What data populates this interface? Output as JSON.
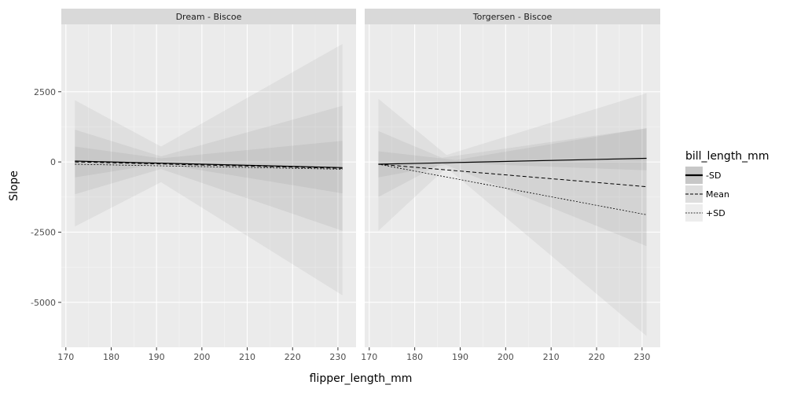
{
  "chart_data": {
    "type": "line",
    "xlabel": "flipper_length_mm",
    "ylabel": "Slope",
    "xlim": [
      169,
      234
    ],
    "ylim": [
      -6600,
      4900
    ],
    "x_ticks": [
      170,
      180,
      190,
      200,
      210,
      220,
      230
    ],
    "x_tick_labels": [
      "170",
      "180",
      "190",
      "200",
      "210",
      "220",
      "230"
    ],
    "y_ticks": [
      2500,
      0,
      -2500,
      -5000
    ],
    "y_tick_labels": [
      "2500",
      "0",
      "-2500",
      "-5000"
    ],
    "grid": true,
    "legend": {
      "title": "bill_length_mm",
      "placement": "right",
      "entries": [
        "-SD",
        "Mean",
        "+SD"
      ]
    },
    "colors": {
      "panel_bg": "#ebebeb",
      "strip_bg": "#d9d9d9",
      "grid_major": "#ffffff",
      "line": "#000000",
      "band_fill": "#000000"
    },
    "facets": [
      {
        "strip": "Dream - Biscoe",
        "x_range": [
          172,
          231
        ],
        "series": [
          {
            "name": "-SD",
            "line": [
              [
                172,
                30
              ],
              [
                231,
                -200
              ]
            ],
            "bands": [
              [
                [
                  172,
                  -550,
                  550
                ],
                [
                  191,
                  -60,
                  130
                ],
                [
                  231,
                  -1120,
                  750
                ]
              ]
            ]
          },
          {
            "name": "Mean",
            "line": [
              [
                172,
                0
              ],
              [
                231,
                -230
              ]
            ],
            "bands": [
              [
                [
                  172,
                  -1150,
                  1150
                ],
                [
                  191,
                  -250,
                  200
                ],
                [
                  231,
                  -2450,
                  2000
                ]
              ]
            ]
          },
          {
            "name": "+SD",
            "line": [
              [
                172,
                -80
              ],
              [
                231,
                -260
              ]
            ],
            "bands": [
              [
                [
                  172,
                  -2300,
                  2200
                ],
                [
                  191,
                  -720,
                  550
                ],
                [
                  231,
                  -4750,
                  4200
                ]
              ]
            ]
          }
        ]
      },
      {
        "strip": "Torgersen - Biscoe",
        "x_range": [
          172,
          231
        ],
        "series": [
          {
            "name": "-SD",
            "line": [
              [
                172,
                -80
              ],
              [
                231,
                130
              ]
            ],
            "bands": [
              [
                [
                  172,
                  -550,
                  380
                ],
                [
                  189,
                  -40,
                  70
                ],
                [
                  231,
                  -300,
                  1200
                ]
              ]
            ]
          },
          {
            "name": "Mean",
            "line": [
              [
                172,
                -80
              ],
              [
                231,
                -880
              ]
            ],
            "bands": [
              [
                [
                  172,
                  -1250,
                  1100
                ],
                [
                  186,
                  -50,
                  150
                ],
                [
                  231,
                  -3000,
                  1200
                ]
              ]
            ]
          },
          {
            "name": "+SD",
            "line": [
              [
                172,
                -80
              ],
              [
                231,
                -1880
              ]
            ],
            "bands": [
              [
                [
                  172,
                  -2450,
                  2250
                ],
                [
                  187,
                  -200,
                  250
                ],
                [
                  231,
                  -6200,
                  2450
                ]
              ]
            ]
          }
        ]
      }
    ]
  }
}
